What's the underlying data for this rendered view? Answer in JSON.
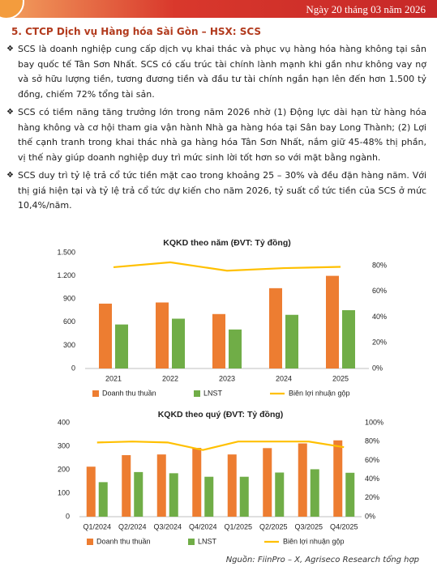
{
  "header": {
    "date": "Ngày 20 tháng 03 năm 2026"
  },
  "section_title": "5. CTCP Dịch vụ Hàng hóa Sài Gòn – HSX: SCS",
  "bullets": [
    "SCS là doanh nghiệp cung cấp dịch vụ khai thác và phục vụ hàng hóa hàng không tại sân bay quốc tế Tân Sơn Nhất. SCS có cấu trúc tài chính lành mạnh khi gần như không vay nợ và sở hữu lượng tiền, tương đương tiền và đầu tư tài chính ngắn hạn lên đến hơn 1.500 tỷ đồng, chiếm 72% tổng tài sản.",
    "SCS có tiềm năng tăng trưởng lớn trong năm 2026 nhờ (1) Động lực dài hạn từ hàng hóa hàng không và cơ hội tham gia vận hành Nhà ga hàng hóa tại Sân bay Long Thành; (2) Lợi thế cạnh tranh trong khai thác nhà ga hàng hóa Tân Sơn Nhất, nắm giữ 45-48% thị phần, vị thế này giúp doanh nghiệp duy trì mức sinh lời tốt hơn so với mặt bằng ngành.",
    "SCS duy trì tỷ lệ trả cổ tức tiền mặt cao trong khoảng 25 – 30% và đều đặn hàng năm. Với thị giá hiện tại và tỷ lệ trả cổ tức dự kiến cho năm 2026, tỷ suất cổ tức tiền của SCS ở mức 10,4%/năm."
  ],
  "chart_data": [
    {
      "type": "bar",
      "title": "KQKD theo năm (ĐVT: Tỷ đồng)",
      "categories": [
        "2021",
        "2022",
        "2023",
        "2024",
        "2025"
      ],
      "series": [
        {
          "name": "Doanh thu thuần",
          "color": "#ed7d31",
          "values": [
            840,
            855,
            705,
            1040,
            1200
          ]
        },
        {
          "name": "LNST",
          "color": "#70ad47",
          "values": [
            570,
            645,
            505,
            695,
            755
          ]
        },
        {
          "name": "Biên lợi nhuận gộp",
          "color": "#ffc000",
          "type": "line",
          "axis": "y2",
          "values": [
            78.7,
            82.5,
            76,
            78,
            79
          ]
        }
      ],
      "ylim": [
        0,
        1500
      ],
      "yticks": [
        0,
        300,
        600,
        900,
        {
          "value": 1200,
          "label": "1.200"
        },
        {
          "value": 1500,
          "label": "1.500"
        }
      ],
      "y2lim": [
        0,
        90
      ],
      "y2ticks": [
        {
          "value": 0,
          "label": "0%"
        },
        {
          "value": 20,
          "label": "20%"
        },
        {
          "value": 40,
          "label": "40%"
        },
        {
          "value": 60,
          "label": "60%"
        },
        {
          "value": 80,
          "label": "80%"
        }
      ]
    },
    {
      "type": "bar",
      "title": "KQKD theo quý (ĐVT: Tỷ đồng)",
      "categories": [
        "Q1/2024",
        "Q2/2024",
        "Q3/2024",
        "Q4/2024",
        "Q1/2025",
        "Q2/2025",
        "Q3/2025",
        "Q4/2025"
      ],
      "series": [
        {
          "name": "Doanh thu thuần",
          "color": "#ed7d31",
          "values": [
            213,
            262,
            265,
            293,
            265,
            292,
            312,
            325
          ]
        },
        {
          "name": "LNST",
          "color": "#70ad47",
          "values": [
            147,
            190,
            185,
            170,
            170,
            188,
            202,
            187
          ]
        },
        {
          "name": "Biên lợi nhuận gộp",
          "color": "#ffc000",
          "type": "line",
          "axis": "y2",
          "values": [
            79,
            80,
            79,
            71,
            80,
            80,
            80,
            74
          ]
        }
      ],
      "ylim": [
        0,
        400
      ],
      "yticks": [
        0,
        100,
        200,
        300,
        400
      ],
      "y2lim": [
        0,
        100
      ],
      "y2ticks": [
        {
          "value": 0,
          "label": "0%"
        },
        {
          "value": 20,
          "label": "20%"
        },
        {
          "value": 40,
          "label": "40%"
        },
        {
          "value": 60,
          "label": "60%"
        },
        {
          "value": 80,
          "label": "80%"
        },
        {
          "value": 100,
          "label": "100%"
        }
      ]
    }
  ],
  "source": "Nguồn: FiinPro – X, Agriseco Research tổng hợp"
}
